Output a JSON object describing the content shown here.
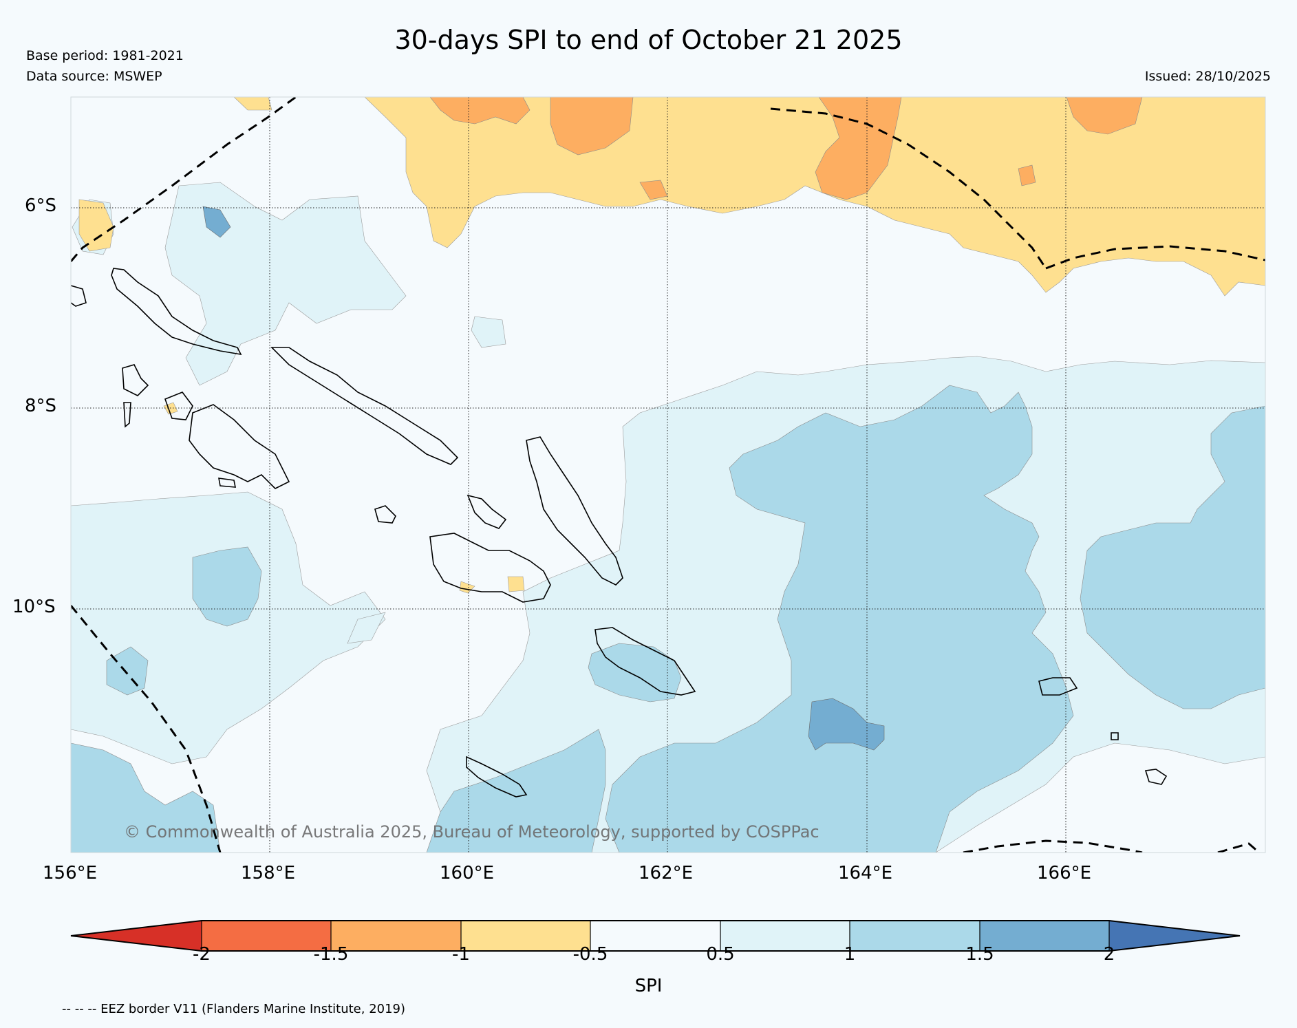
{
  "header": {
    "title": "30-days SPI to end of October 21 2025",
    "base_period": "Base period: 1981-2021",
    "data_source": "Data source: MSWEP",
    "issued": "Issued: 28/10/2025"
  },
  "map": {
    "lat_labels": [
      "6°S",
      "8°S",
      "10°S"
    ],
    "lon_labels": [
      "156°E",
      "158°E",
      "160°E",
      "162°E",
      "164°E",
      "166°E"
    ],
    "copyright": "© Commonwealth of Australia 2025, Bureau of Meteorology, supported by COSPPac"
  },
  "colorbar": {
    "label": "SPI",
    "ticks": [
      "-2",
      "-1.5",
      "-1",
      "-0.5",
      "0.5",
      "1",
      "1.5",
      "2"
    ],
    "colors": [
      "#d73027",
      "#f46d43",
      "#fdae61",
      "#fee090",
      "#f5fafd",
      "#e0f3f8",
      "#abd9e9",
      "#74add1",
      "#4575b4"
    ]
  },
  "footer": {
    "eez_note": "-- -- -- EEZ border V11 (Flanders Marine Institute, 2019)"
  }
}
